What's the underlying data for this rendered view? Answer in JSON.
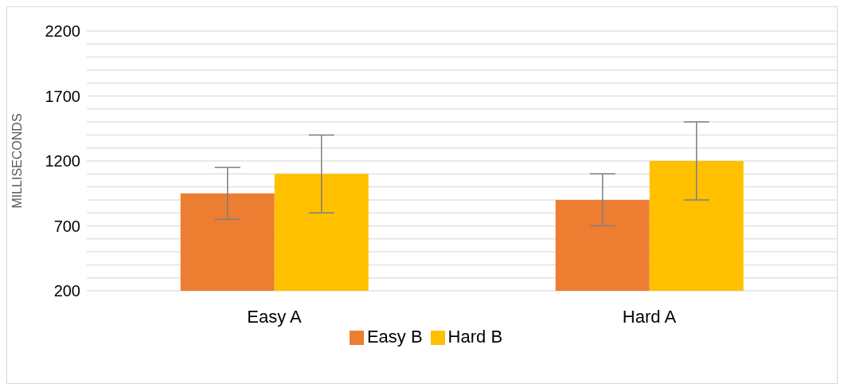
{
  "chart_data": {
    "type": "bar",
    "ylabel": "MILLISECONDS",
    "categories": [
      "Easy A",
      "Hard A"
    ],
    "series": [
      {
        "name": "Easy B",
        "color": "#ed7d31",
        "values": [
          950,
          900
        ],
        "errors": [
          200,
          200
        ]
      },
      {
        "name": "Hard B",
        "color": "#ffc000",
        "values": [
          1100,
          1200
        ],
        "errors": [
          300,
          300
        ]
      }
    ],
    "ylim": [
      200,
      2200
    ],
    "yticks": [
      200,
      {
        "value": 300,
        "label": null
      },
      {
        "value": 400,
        "label": null
      },
      {
        "value": 500,
        "label": null
      },
      {
        "value": 600,
        "label": null
      },
      700,
      {
        "value": 800,
        "label": null
      },
      {
        "value": 900,
        "label": null
      },
      {
        "value": 1000,
        "label": null
      },
      {
        "value": 1100,
        "label": null
      },
      1200,
      {
        "value": 1300,
        "label": null
      },
      {
        "value": 1400,
        "label": null
      },
      {
        "value": 1500,
        "label": null
      },
      {
        "value": 1600,
        "label": null
      },
      1700,
      {
        "value": 1800,
        "label": null
      },
      {
        "value": 1900,
        "label": null
      },
      {
        "value": 2000,
        "label": null
      },
      {
        "value": 2100,
        "label": null
      },
      2200
    ],
    "grid": "y",
    "legend": "bottom"
  }
}
